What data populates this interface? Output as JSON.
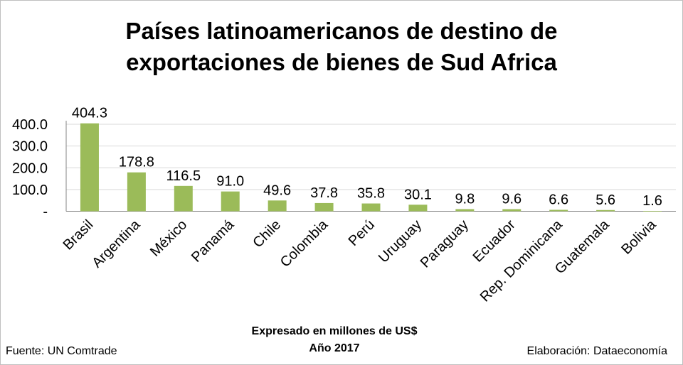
{
  "chart_data": {
    "type": "bar",
    "title_lines": [
      "Países latinoamericanos de destino de",
      "exportaciones de bienes de Sud Africa"
    ],
    "categories": [
      "Brasil",
      "Argentina",
      "México",
      "Panamá",
      "Chile",
      "Colombia",
      "Perú",
      "Uruguay",
      "Paraguay",
      "Ecuador",
      "Rep. Dominicana",
      "Guatemala",
      "Bolivia"
    ],
    "values": [
      404.3,
      178.8,
      116.5,
      91.0,
      49.6,
      37.8,
      35.8,
      30.1,
      9.8,
      9.6,
      6.6,
      5.6,
      1.6
    ],
    "value_labels": [
      "404.3",
      "178.8",
      "116.5",
      "91.0",
      "49.6",
      "37.8",
      "35.8",
      "30.1",
      "9.8",
      "9.6",
      "6.6",
      "5.6",
      "1.6"
    ],
    "y_ticks": [
      0,
      100,
      200,
      300,
      400
    ],
    "y_tick_labels": [
      "-",
      "100.0",
      "200.0",
      "300.0",
      "400.0"
    ],
    "ylim": [
      0,
      400
    ],
    "grid": true,
    "bar_color": "#9bbb59",
    "grid_color": "#d9d9d9",
    "xlabel": "",
    "ylabel": ""
  },
  "caption": {
    "line1": "Expresado en millones de US$",
    "line2": "Año 2017"
  },
  "footer": {
    "source": "Fuente: UN Comtrade",
    "credit": "Elaboración: Dataeconomía"
  }
}
